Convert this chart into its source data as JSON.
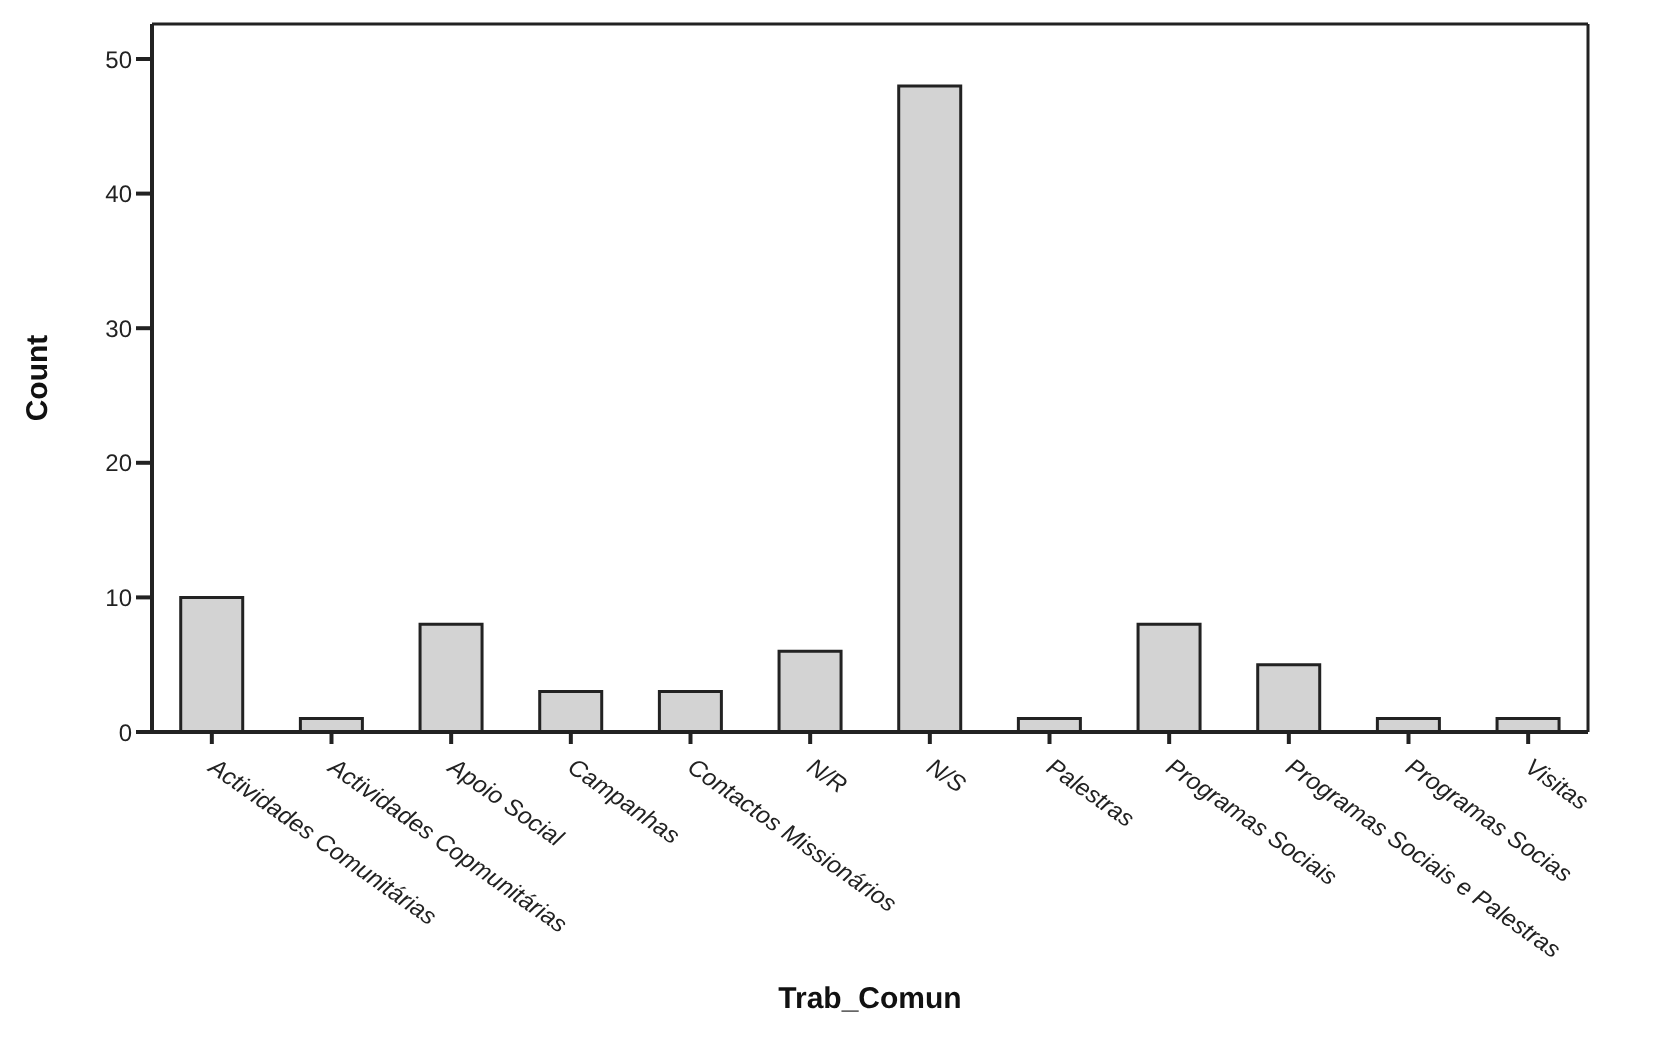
{
  "chart_data": {
    "type": "bar",
    "xlabel": "Trab_Comun",
    "ylabel": "Count",
    "categories": [
      "Actividades Comunitárias",
      "Actividades Copmunitárias",
      "Apoio Social",
      "Campanhas",
      "Contactos Missionários",
      "N/R",
      "N/S",
      "Palestras",
      "Programas Sociais",
      "Programas Sociais e Palestras",
      "Programas Socias",
      "Visitas"
    ],
    "values": [
      10,
      1,
      8,
      3,
      3,
      6,
      48,
      1,
      8,
      5,
      1,
      1
    ],
    "color": "#d3d3d3",
    "ylim": [
      0,
      52.6
    ],
    "yticks": [
      0,
      10,
      20,
      30,
      40,
      50
    ]
  }
}
